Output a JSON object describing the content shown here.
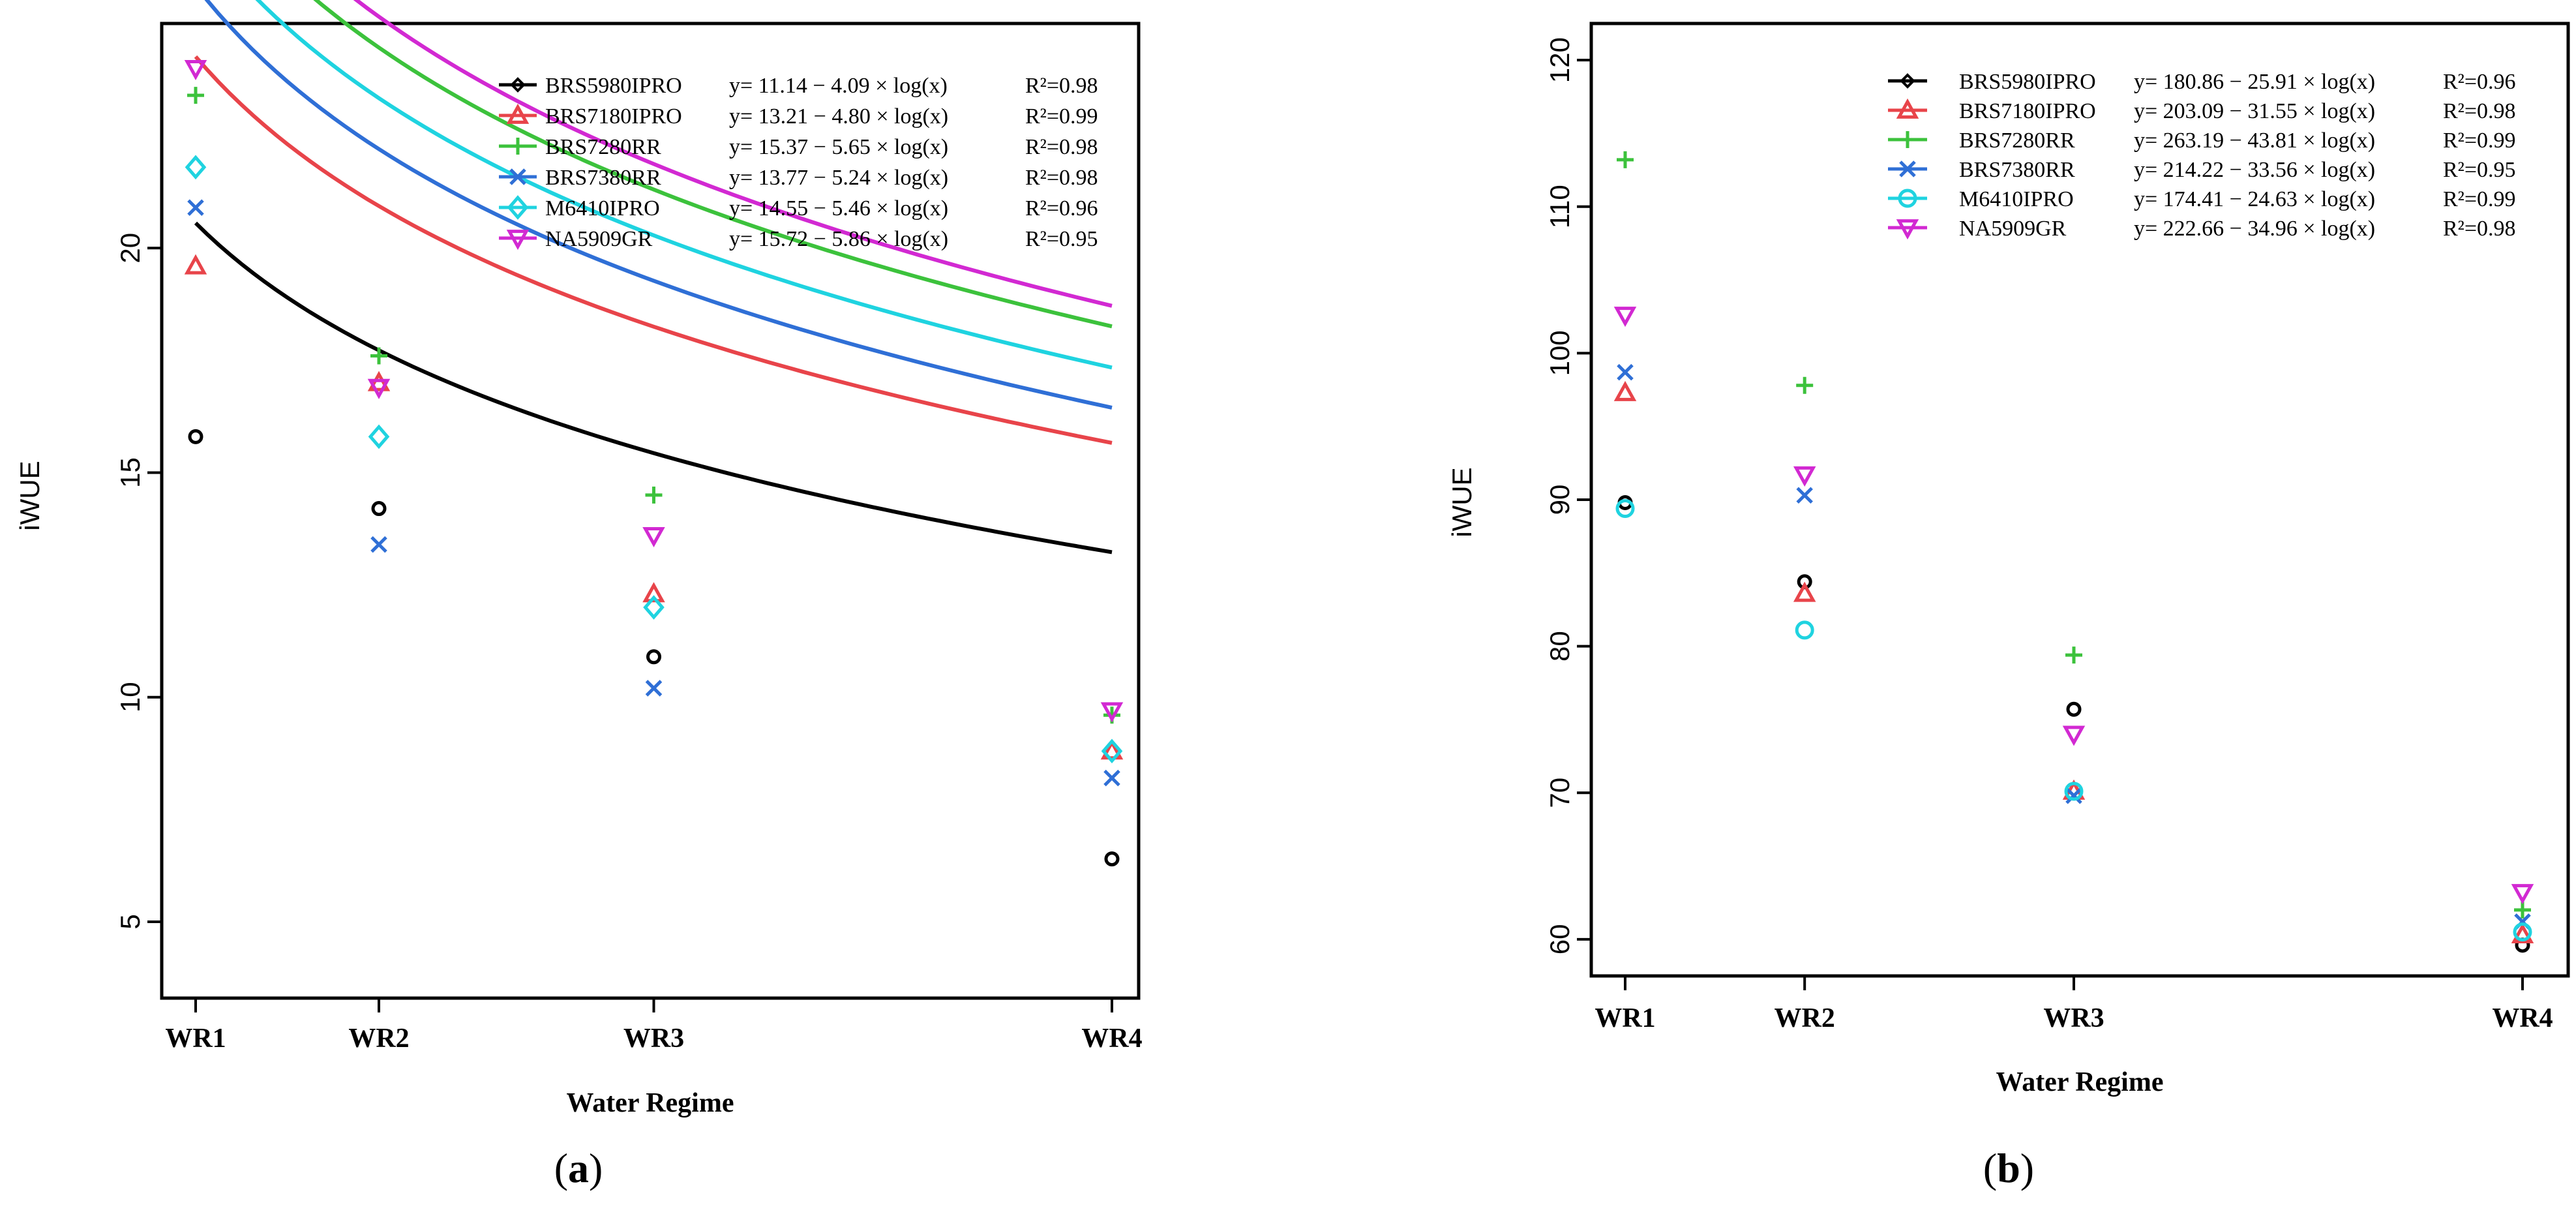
{
  "figure": {
    "panel_labels": [
      "(a)",
      "(b)"
    ],
    "panel_letters": [
      "a",
      "b"
    ]
  },
  "chart_data": [
    {
      "type": "scatter",
      "panel": "a",
      "xlabel": "Water Regime",
      "ylabel": "iWUE",
      "ylim": [
        3.3,
        25.0
      ],
      "yticks": [
        5,
        10,
        15,
        20
      ],
      "categories": [
        "WR1",
        "WR2",
        "WR3",
        "WR4"
      ],
      "x": [
        1.0,
        2.0,
        3.5,
        6.0
      ],
      "series": [
        {
          "name": "BRS5980IPRO",
          "color": "#000000",
          "marker": "circle",
          "equation": "y= 11.14 − 4.09 × log(x)",
          "r2": "R²=0.98",
          "values": [
            15.8,
            14.2,
            10.9,
            6.4
          ],
          "fit": [
            11.14,
            4.09
          ]
        },
        {
          "name": "BRS7180IPRO",
          "color": "#e8444a",
          "marker": "triangle-up",
          "equation": "y= 13.21 − 4.80 × log(x)",
          "r2": "R²=0.99",
          "values": [
            19.6,
            17.0,
            12.3,
            8.8
          ],
          "fit": [
            13.21,
            4.8
          ]
        },
        {
          "name": "BRS7280RR",
          "color": "#3cc23c",
          "marker": "plus",
          "equation": "y= 15.37 − 5.65 × log(x)",
          "r2": "R²=0.98",
          "values": [
            23.4,
            17.6,
            14.5,
            9.6
          ],
          "fit": [
            15.37,
            5.65
          ]
        },
        {
          "name": "BRS7380RR",
          "color": "#2f6fd6",
          "marker": "cross",
          "equation": "y= 13.77 − 5.24 × log(x)",
          "r2": "R²=0.98",
          "values": [
            20.9,
            13.4,
            10.2,
            8.2
          ],
          "fit": [
            13.77,
            5.24
          ]
        },
        {
          "name": "M6410IPRO",
          "color": "#1fd3e0",
          "marker": "diamond",
          "equation": "y= 14.55 − 5.46 × log(x)",
          "r2": "R²=0.96",
          "values": [
            21.8,
            15.8,
            12.0,
            8.8
          ],
          "fit": [
            14.55,
            5.46
          ]
        },
        {
          "name": "NA5909GR",
          "color": "#d229d2",
          "marker": "triangle-down",
          "equation": "y= 15.72 − 5.86 × log(x)",
          "r2": "R²=0.95",
          "values": [
            24.0,
            16.9,
            13.6,
            9.7
          ],
          "fit": [
            15.72,
            5.86
          ]
        }
      ]
    },
    {
      "type": "scatter",
      "panel": "b",
      "xlabel": "Water Regime",
      "ylabel": "iWUE",
      "ylim": [
        57.5,
        122.5
      ],
      "yticks": [
        60,
        70,
        80,
        90,
        100,
        110,
        120
      ],
      "categories": [
        "WR1",
        "WR2",
        "WR3",
        "WR4"
      ],
      "x": [
        1.0,
        2.0,
        3.5,
        6.0
      ],
      "series": [
        {
          "name": "BRS5980IPRO",
          "color": "#000000",
          "marker": "circle",
          "equation": "y= 180.86 − 25.91 × log(x)",
          "r2": "R²=0.96",
          "values": [
            89.8,
            84.4,
            75.7,
            59.6
          ],
          "fit": [
            180.86,
            25.91
          ]
        },
        {
          "name": "BRS7180IPRO",
          "color": "#e8444a",
          "marker": "triangle-up",
          "equation": "y= 203.09 − 31.55 × log(x)",
          "r2": "R²=0.98",
          "values": [
            97.3,
            83.6,
            70.1,
            60.3
          ],
          "fit": [
            203.09,
            31.55
          ]
        },
        {
          "name": "BRS7280RR",
          "color": "#3cc23c",
          "marker": "plus",
          "equation": "y= 263.19 − 43.81 × log(x)",
          "r2": "R²=0.99",
          "values": [
            113.2,
            97.8,
            79.4,
            62.0
          ],
          "fit": [
            263.19,
            43.81
          ]
        },
        {
          "name": "BRS7380RR",
          "color": "#2f6fd6",
          "marker": "cross",
          "equation": "y= 214.22 − 33.56 × log(x)",
          "r2": "R²=0.95",
          "values": [
            98.7,
            90.3,
            69.8,
            61.2
          ],
          "fit": [
            214.22,
            33.56
          ]
        },
        {
          "name": "M6410IPRO",
          "color": "#1fd3e0",
          "marker": "circle-open",
          "equation": "y= 174.41 − 24.63 × log(x)",
          "r2": "R²=0.99",
          "values": [
            89.4,
            81.1,
            70.1,
            60.5
          ],
          "fit": [
            174.41,
            24.63
          ]
        },
        {
          "name": "NA5909GR",
          "color": "#d229d2",
          "marker": "triangle-down",
          "equation": "y= 222.66 − 34.96 × log(x)",
          "r2": "R²=0.98",
          "values": [
            102.6,
            91.7,
            74.0,
            63.2
          ],
          "fit": [
            222.66,
            34.96
          ]
        }
      ]
    }
  ]
}
